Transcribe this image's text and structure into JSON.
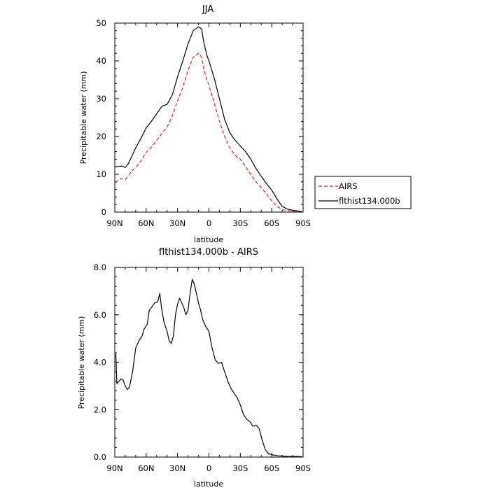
{
  "chart_data": [
    {
      "type": "line",
      "title": "JJA",
      "xlabel": "latitude",
      "ylabel": "Precipitable water (mm)",
      "xlim": [
        90,
        -90
      ],
      "ylim": [
        0,
        50
      ],
      "xticks": [
        90,
        60,
        30,
        0,
        -30,
        -60,
        -90
      ],
      "xtick_labels": [
        "90N",
        "60N",
        "30N",
        "0",
        "30S",
        "60S",
        "90S"
      ],
      "yticks": [
        0,
        10,
        20,
        30,
        40,
        50
      ],
      "ytick_labels": [
        "0",
        "10",
        "20",
        "30",
        "40",
        "50"
      ],
      "legend": "outside-right",
      "series": [
        {
          "name": "AIRS",
          "color": "#e8201a",
          "dash": "dashed",
          "x": [
            89,
            86,
            83,
            80,
            77,
            74,
            70,
            65,
            60,
            55,
            50,
            45,
            40,
            35,
            30,
            25,
            20,
            15,
            10,
            7,
            5,
            2,
            0,
            -5,
            -10,
            -15,
            -20,
            -25,
            -30,
            -35,
            -40,
            -45,
            -50,
            -55,
            -60,
            -65,
            -70,
            -75,
            -80,
            -85,
            -89
          ],
          "y": [
            7.8,
            8.8,
            8.8,
            8.6,
            9.6,
            10.8,
            11.8,
            13.5,
            15.8,
            17.2,
            19.0,
            20.8,
            22.5,
            25.5,
            29.5,
            33.0,
            37.5,
            41.0,
            42.0,
            41.0,
            38.0,
            35.0,
            33.5,
            29.0,
            24.0,
            20.0,
            17.0,
            15.0,
            14.0,
            12.0,
            10.0,
            8.0,
            6.5,
            4.8,
            3.0,
            1.5,
            0.7,
            0.4,
            0.3,
            0.2,
            0.1
          ]
        },
        {
          "name": "flthist134.000b",
          "color": "#000000",
          "dash": "solid",
          "x": [
            89,
            86,
            83,
            80,
            77,
            74,
            70,
            65,
            60,
            55,
            50,
            45,
            40,
            35,
            30,
            25,
            20,
            15,
            10,
            7,
            5,
            2,
            0,
            -5,
            -10,
            -15,
            -20,
            -25,
            -30,
            -35,
            -40,
            -45,
            -50,
            -55,
            -60,
            -65,
            -70,
            -75,
            -80,
            -85,
            -89
          ],
          "y": [
            12.0,
            12.1,
            12.2,
            11.8,
            12.8,
            14.6,
            17.0,
            19.5,
            22.3,
            24.0,
            26.0,
            28.0,
            28.5,
            31.0,
            35.8,
            40.0,
            44.5,
            48.0,
            49.0,
            48.5,
            45.0,
            41.5,
            40.0,
            35.5,
            30.0,
            24.5,
            21.0,
            19.0,
            17.5,
            16.0,
            14.0,
            11.5,
            9.5,
            7.5,
            5.8,
            3.5,
            1.5,
            0.8,
            0.5,
            0.3,
            0.1
          ]
        }
      ]
    },
    {
      "type": "line",
      "title": "flthist134.000b - AIRS",
      "xlabel": "latitude",
      "ylabel": "Precipitable water (mm)",
      "xlim": [
        90,
        -90
      ],
      "ylim": [
        0,
        8
      ],
      "xticks": [
        90,
        60,
        30,
        0,
        -30,
        -60,
        -90
      ],
      "xtick_labels": [
        "90N",
        "60N",
        "30N",
        "0",
        "30S",
        "60S",
        "90S"
      ],
      "yticks": [
        0,
        2,
        4,
        6,
        8
      ],
      "ytick_labels": [
        "0.0",
        "2.0",
        "4.0",
        "6.0",
        "8.0"
      ],
      "series": [
        {
          "color": "#000000",
          "x": [
            89,
            88,
            86,
            84,
            82,
            80,
            78,
            76,
            73,
            70,
            67,
            64,
            62,
            59,
            57,
            55,
            52,
            49,
            47,
            45,
            43,
            40,
            38,
            36,
            34,
            32,
            30,
            28,
            26,
            24,
            22,
            20,
            18,
            16,
            14,
            12,
            10,
            8,
            6,
            3,
            0,
            -3,
            -6,
            -9,
            -12,
            -15,
            -18,
            -21,
            -24,
            -27,
            -30,
            -33,
            -36,
            -39,
            -42,
            -45,
            -48,
            -51,
            -54,
            -57,
            -60,
            -63,
            -65,
            -67,
            -69,
            -71,
            -73,
            -75,
            -78,
            -82,
            -86,
            -89
          ],
          "y": [
            4.35,
            3.1,
            3.2,
            3.3,
            3.25,
            3.0,
            2.85,
            2.95,
            3.6,
            4.6,
            4.9,
            5.1,
            5.4,
            5.6,
            6.2,
            6.3,
            6.5,
            6.55,
            6.9,
            6.2,
            5.7,
            5.3,
            4.9,
            4.8,
            5.1,
            6.0,
            6.45,
            6.7,
            6.5,
            6.3,
            6.0,
            6.2,
            6.9,
            7.5,
            7.3,
            6.9,
            6.5,
            6.2,
            5.8,
            5.5,
            5.3,
            4.6,
            4.1,
            3.95,
            4.0,
            3.6,
            3.2,
            2.9,
            2.7,
            2.5,
            2.2,
            1.8,
            1.6,
            1.5,
            1.3,
            1.35,
            1.2,
            0.7,
            0.3,
            0.15,
            0.1,
            0.08,
            0.06,
            0.05,
            0.05,
            0.04,
            0.04,
            0.03,
            0.03,
            0.03,
            0.02,
            0.02
          ]
        }
      ]
    }
  ]
}
